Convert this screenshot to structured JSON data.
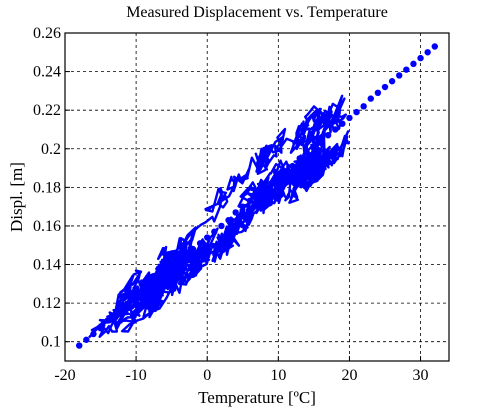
{
  "chart_data": {
    "type": "scatter",
    "title": "Measured Displacement vs. Temperature",
    "xlabel": "Temperature [ºC]",
    "ylabel": "Displ. [m]",
    "xlim": [
      -20,
      34
    ],
    "ylim": [
      0.09,
      0.26
    ],
    "x_ticks": [
      -20,
      -10,
      0,
      10,
      20,
      30
    ],
    "y_ticks": [
      0.1,
      0.12,
      0.14,
      0.16,
      0.18,
      0.2,
      0.22,
      0.24,
      0.26
    ],
    "x_tick_labels": [
      "-20",
      "-10",
      "0",
      "10",
      "20",
      "30"
    ],
    "y_tick_labels": [
      "0.1",
      "0.12",
      "0.14",
      "0.16",
      "0.18",
      "0.2",
      "0.22",
      "0.24",
      "0.26"
    ],
    "grid": true,
    "grid_style": "dashed",
    "series": [
      {
        "color": "#0000ff",
        "marker": "connected-dots",
        "trend": {
          "x": [
            -18,
            32
          ],
          "y": [
            0.098,
            0.255
          ]
        },
        "spread_y": 0.012,
        "x": [
          -18,
          -17,
          -16,
          -15,
          -14,
          -13,
          -12,
          -11,
          -10,
          -9,
          -8,
          -7,
          -6,
          -5,
          -4,
          -3,
          -2,
          -1,
          0,
          1,
          2,
          3,
          4,
          5,
          6,
          7,
          8,
          9,
          10,
          11,
          12,
          13,
          14,
          15,
          16,
          17,
          18,
          19,
          20,
          21,
          22,
          23,
          24,
          25,
          26,
          27,
          28,
          29,
          30,
          31,
          32
        ],
        "y_center": [
          0.098,
          0.101,
          0.104,
          0.107,
          0.111,
          0.114,
          0.117,
          0.12,
          0.123,
          0.126,
          0.129,
          0.132,
          0.136,
          0.139,
          0.142,
          0.145,
          0.148,
          0.151,
          0.154,
          0.157,
          0.16,
          0.163,
          0.167,
          0.17,
          0.173,
          0.176,
          0.179,
          0.182,
          0.185,
          0.188,
          0.191,
          0.195,
          0.198,
          0.201,
          0.204,
          0.207,
          0.21,
          0.213,
          0.216,
          0.219,
          0.222,
          0.226,
          0.229,
          0.232,
          0.235,
          0.238,
          0.241,
          0.244,
          0.247,
          0.25,
          0.253
        ]
      }
    ]
  }
}
